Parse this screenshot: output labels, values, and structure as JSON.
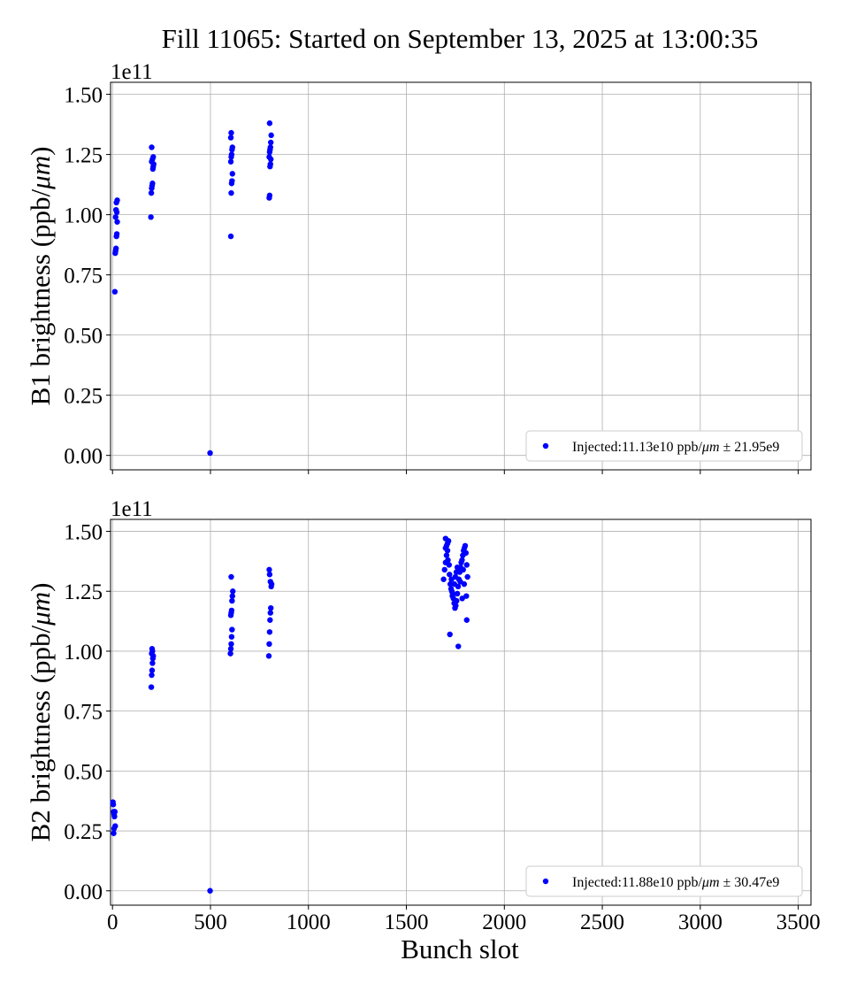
{
  "title": "Fill 11065: Started on September 13, 2025 at 13:00:35",
  "xlabel": "Bunch slot",
  "chart_data": [
    {
      "type": "scatter",
      "ylabel_main": "B1 brightness (ppb/",
      "ylabel_unit": "μm",
      "ylabel_tail": ")",
      "exponent": "1e11",
      "xlim": [
        -10,
        3565
      ],
      "ylim": [
        -0.06,
        1.55
      ],
      "xticks": [
        0,
        500,
        1000,
        1500,
        2000,
        2500,
        3000,
        3500
      ],
      "yticks": [
        0.0,
        0.25,
        0.5,
        0.75,
        1.0,
        1.25,
        1.5
      ],
      "ytick_labels": [
        "0.00",
        "0.25",
        "0.50",
        "0.75",
        "1.00",
        "1.25",
        "1.50"
      ],
      "grid": true,
      "legend_placement": "lower-right",
      "color": "#0000ff",
      "series": [
        {
          "name": "Injected:11.13e10 ppb/μm ± 21.95e9",
          "legend_prefix": "Injected:11.13e10 ppb/",
          "legend_unit": "μm",
          "legend_suffix": " ± 21.95e9",
          "points": [
            [
              12,
              0.68
            ],
            [
              14,
              0.84
            ],
            [
              16,
              0.85
            ],
            [
              18,
              0.86
            ],
            [
              20,
              0.91
            ],
            [
              22,
              0.92
            ],
            [
              24,
              0.97
            ],
            [
              16,
              0.99
            ],
            [
              22,
              1.01
            ],
            [
              18,
              1.02
            ],
            [
              20,
              1.05
            ],
            [
              24,
              1.06
            ],
            [
              196,
              0.99
            ],
            [
              198,
              1.09
            ],
            [
              200,
              1.11
            ],
            [
              202,
              1.12
            ],
            [
              204,
              1.13
            ],
            [
              206,
              1.19
            ],
            [
              208,
              1.2
            ],
            [
              210,
              1.21
            ],
            [
              200,
              1.22
            ],
            [
              204,
              1.23
            ],
            [
              208,
              1.24
            ],
            [
              200,
              1.28
            ],
            [
              498,
              0.01
            ],
            [
              604,
              0.91
            ],
            [
              606,
              1.09
            ],
            [
              608,
              1.13
            ],
            [
              610,
              1.14
            ],
            [
              612,
              1.17
            ],
            [
              604,
              1.22
            ],
            [
              606,
              1.24
            ],
            [
              608,
              1.25
            ],
            [
              610,
              1.27
            ],
            [
              612,
              1.28
            ],
            [
              604,
              1.32
            ],
            [
              606,
              1.34
            ],
            [
              800,
              1.07
            ],
            [
              802,
              1.08
            ],
            [
              804,
              1.2
            ],
            [
              806,
              1.21
            ],
            [
              808,
              1.23
            ],
            [
              800,
              1.24
            ],
            [
              802,
              1.26
            ],
            [
              804,
              1.27
            ],
            [
              806,
              1.28
            ],
            [
              808,
              1.3
            ],
            [
              810,
              1.33
            ],
            [
              802,
              1.38
            ]
          ]
        }
      ]
    },
    {
      "type": "scatter",
      "ylabel_main": "B2 brightness (ppb/",
      "ylabel_unit": "μm",
      "ylabel_tail": ")",
      "exponent": "1e11",
      "xlim": [
        -10,
        3565
      ],
      "ylim": [
        -0.06,
        1.55
      ],
      "xticks": [
        0,
        500,
        1000,
        1500,
        2000,
        2500,
        3000,
        3500
      ],
      "xtick_labels": [
        "0",
        "500",
        "1000",
        "1500",
        "2000",
        "2500",
        "3000",
        "3500"
      ],
      "yticks": [
        0.0,
        0.25,
        0.5,
        0.75,
        1.0,
        1.25,
        1.5
      ],
      "ytick_labels": [
        "0.00",
        "0.25",
        "0.50",
        "0.75",
        "1.00",
        "1.25",
        "1.50"
      ],
      "grid": true,
      "legend_placement": "lower-right",
      "color": "#0000ff",
      "series": [
        {
          "name": "Injected:11.88e10 ppb/μm ± 30.47e9",
          "legend_prefix": "Injected:11.88e10 ppb/",
          "legend_unit": "μm",
          "legend_suffix": " ± 30.47e9",
          "points": [
            [
              2,
              0.37
            ],
            [
              4,
              0.36
            ],
            [
              6,
              0.33
            ],
            [
              8,
              0.32
            ],
            [
              10,
              0.31
            ],
            [
              12,
              0.33
            ],
            [
              14,
              0.27
            ],
            [
              8,
              0.26
            ],
            [
              6,
              0.24
            ],
            [
              198,
              0.85
            ],
            [
              200,
              0.9
            ],
            [
              202,
              0.92
            ],
            [
              204,
              0.95
            ],
            [
              206,
              0.97
            ],
            [
              208,
              0.98
            ],
            [
              200,
              0.99
            ],
            [
              204,
              1.0
            ],
            [
              202,
              1.01
            ],
            [
              498,
              0.0
            ],
            [
              602,
              0.99
            ],
            [
              604,
              1.01
            ],
            [
              606,
              1.03
            ],
            [
              608,
              1.06
            ],
            [
              610,
              1.09
            ],
            [
              604,
              1.15
            ],
            [
              606,
              1.16
            ],
            [
              608,
              1.17
            ],
            [
              610,
              1.21
            ],
            [
              612,
              1.23
            ],
            [
              614,
              1.25
            ],
            [
              606,
              1.31
            ],
            [
              798,
              0.98
            ],
            [
              800,
              1.03
            ],
            [
              802,
              1.08
            ],
            [
              804,
              1.13
            ],
            [
              806,
              1.16
            ],
            [
              808,
              1.18
            ],
            [
              810,
              1.27
            ],
            [
              812,
              1.28
            ],
            [
              806,
              1.29
            ],
            [
              802,
              1.32
            ],
            [
              800,
              1.34
            ],
            [
              1690,
              1.3
            ],
            [
              1695,
              1.34
            ],
            [
              1700,
              1.37
            ],
            [
              1705,
              1.4
            ],
            [
              1710,
              1.42
            ],
            [
              1700,
              1.43
            ],
            [
              1705,
              1.44
            ],
            [
              1710,
              1.45
            ],
            [
              1715,
              1.46
            ],
            [
              1700,
              1.47
            ],
            [
              1712,
              1.38
            ],
            [
              1718,
              1.36
            ],
            [
              1720,
              1.32
            ],
            [
              1724,
              1.28
            ],
            [
              1728,
              1.26
            ],
            [
              1732,
              1.25
            ],
            [
              1736,
              1.24
            ],
            [
              1740,
              1.22
            ],
            [
              1744,
              1.2
            ],
            [
              1748,
              1.18
            ],
            [
              1752,
              1.19
            ],
            [
              1756,
              1.21
            ],
            [
              1760,
              1.24
            ],
            [
              1764,
              1.27
            ],
            [
              1768,
              1.3
            ],
            [
              1772,
              1.33
            ],
            [
              1776,
              1.35
            ],
            [
              1780,
              1.37
            ],
            [
              1784,
              1.38
            ],
            [
              1788,
              1.4
            ],
            [
              1792,
              1.42
            ],
            [
              1796,
              1.43
            ],
            [
              1800,
              1.44
            ],
            [
              1804,
              1.41
            ],
            [
              1808,
              1.36
            ],
            [
              1812,
              1.31
            ],
            [
              1806,
              1.23
            ],
            [
              1808,
              1.13
            ],
            [
              1722,
              1.07
            ],
            [
              1765,
              1.02
            ],
            [
              1750,
              1.31
            ],
            [
              1745,
              1.28
            ],
            [
              1755,
              1.33
            ],
            [
              1735,
              1.23
            ],
            [
              1775,
              1.29
            ],
            [
              1785,
              1.22
            ],
            [
              1795,
              1.28
            ],
            [
              1730,
              1.3
            ],
            [
              1760,
              1.35
            ],
            [
              1790,
              1.34
            ]
          ]
        }
      ]
    }
  ]
}
